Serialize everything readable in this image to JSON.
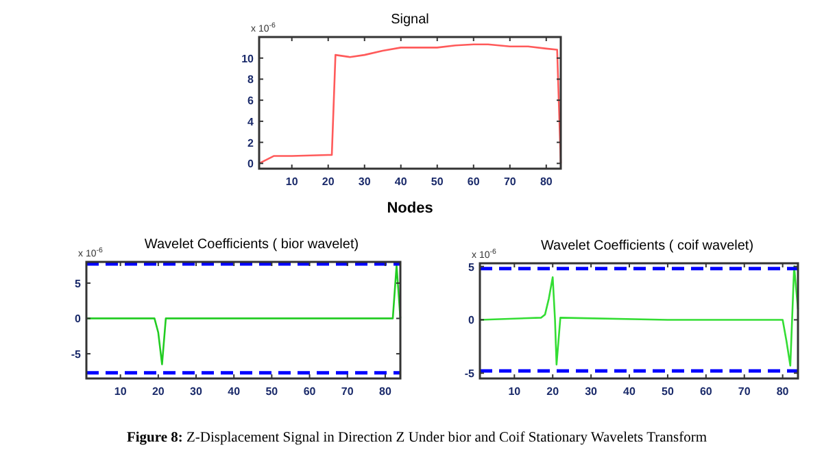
{
  "chart_data": [
    {
      "type": "line",
      "title": "Signal",
      "xlabel": "Nodes",
      "annotations": [
        "x 10$^{-6}$",
        "Figure 8: Z-Displacement Signal in Direction Z Under bior and Coif Stationary Wavelets Transform"
      ],
      "xlim": [
        1,
        84
      ],
      "ylim": [
        -0.5,
        12
      ],
      "xticks": [
        10,
        20,
        30,
        40,
        50,
        60,
        70,
        80
      ],
      "yticks": [
        0,
        2,
        4,
        6,
        8,
        10
      ],
      "series": [
        {
          "color": "#ff5a5a",
          "x": [
            1,
            5,
            10,
            15,
            20,
            21,
            22,
            26,
            30,
            35,
            40,
            45,
            50,
            55,
            60,
            64,
            70,
            75,
            80,
            83,
            84
          ],
          "values": [
            0,
            0.7,
            0.7,
            0.75,
            0.8,
            0.8,
            10.3,
            10.1,
            10.3,
            10.7,
            11.0,
            11.0,
            11.0,
            11.2,
            11.3,
            11.3,
            11.1,
            11.1,
            10.9,
            10.8,
            0
          ]
        }
      ]
    },
    {
      "type": "line",
      "title": "Wavelet Coefficients ( bior wavelet)",
      "annotations": [
        "x 10$^{-6}$"
      ],
      "xlim": [
        1,
        84
      ],
      "ylim": [
        -8.5,
        8
      ],
      "xticks": [
        10,
        20,
        30,
        40,
        50,
        60,
        70,
        80
      ],
      "yticks": [
        -5,
        0,
        5
      ],
      "ref_lines": [
        {
          "axis": "y",
          "value": 7.7,
          "color": "#0000ff",
          "line_style": "dashed"
        },
        {
          "axis": "y",
          "value": -7.7,
          "color": "#0000ff",
          "line_style": "dashed"
        }
      ],
      "series": [
        {
          "color": "#22cc22",
          "x": [
            1,
            19,
            20,
            21,
            22,
            82,
            83,
            84
          ],
          "values": [
            0,
            0,
            -2,
            -6.5,
            0,
            0,
            7.5,
            0
          ]
        }
      ]
    },
    {
      "type": "line",
      "title": "Wavelet Coefficients ( coif wavelet)",
      "annotations": [
        "x 10$^{-6}$"
      ],
      "xlim": [
        1,
        84
      ],
      "ylim": [
        -5.5,
        5.3
      ],
      "xticks": [
        10,
        20,
        30,
        40,
        50,
        60,
        70,
        80
      ],
      "yticks": [
        -5,
        0,
        5
      ],
      "ref_lines": [
        {
          "axis": "y",
          "value": 4.8,
          "color": "#0000ff",
          "line_style": "dashed"
        },
        {
          "axis": "y",
          "value": -4.8,
          "color": "#0000ff",
          "line_style": "dashed"
        }
      ],
      "series": [
        {
          "color": "#33dd33",
          "x": [
            1,
            17,
            18,
            19,
            20,
            20.6,
            21,
            22,
            50,
            80,
            81,
            82,
            83,
            84
          ],
          "values": [
            0,
            0.2,
            0.5,
            2,
            4,
            0,
            -4.2,
            0.2,
            0,
            0,
            -2,
            -4.3,
            5,
            1
          ]
        }
      ]
    }
  ]
}
